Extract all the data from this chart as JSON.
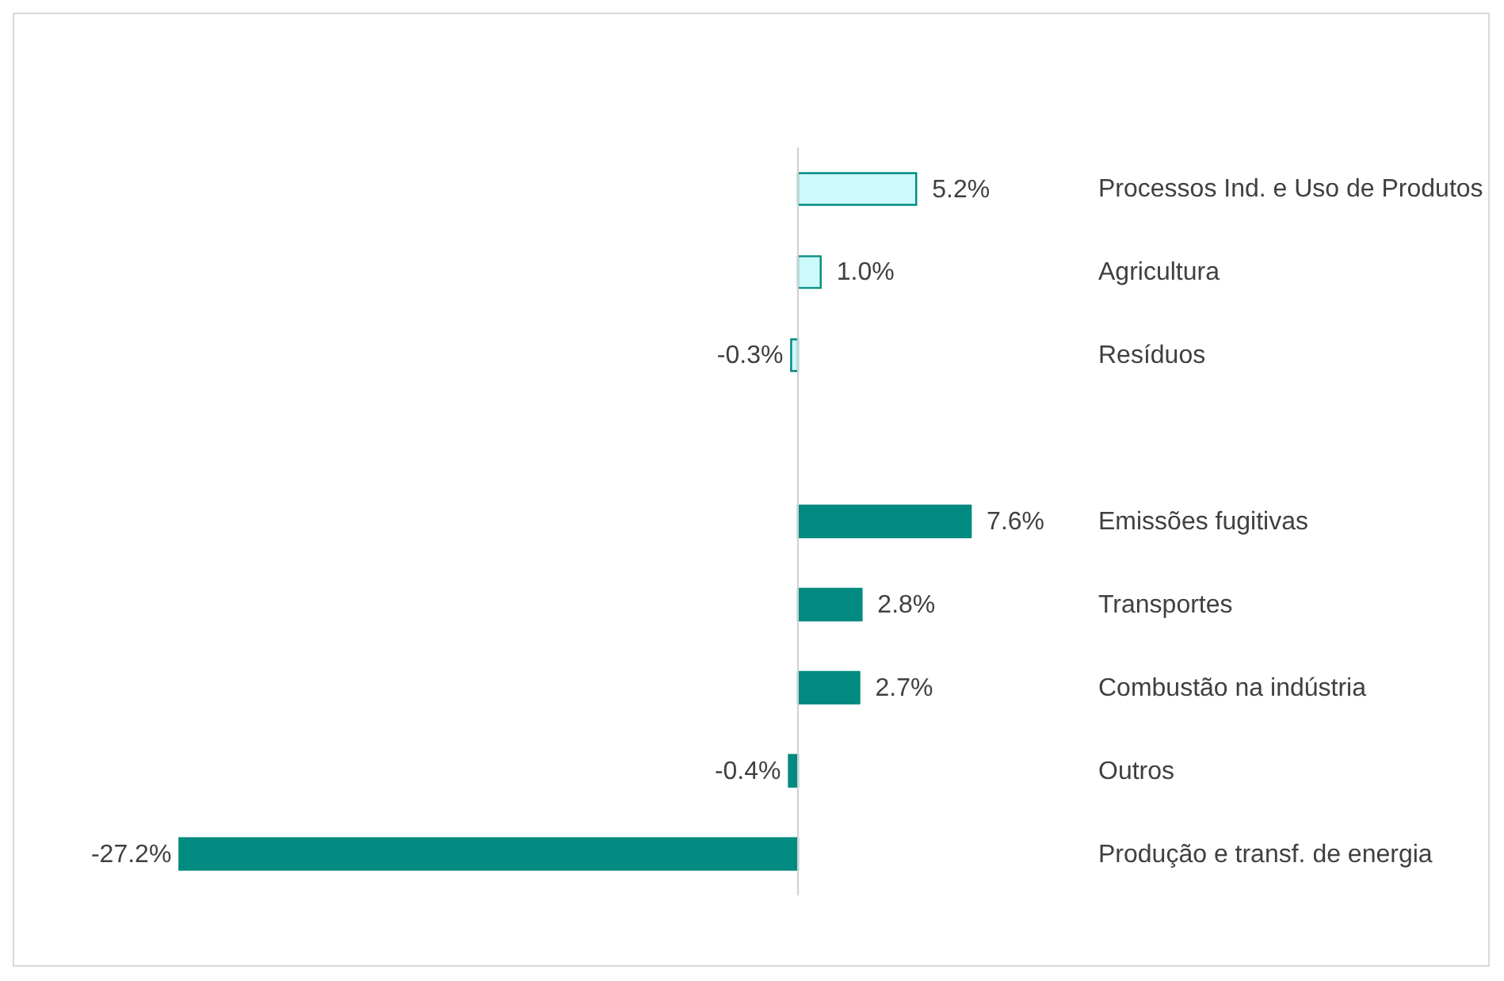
{
  "chart_data": {
    "type": "bar",
    "orientation": "horizontal",
    "categories": [
      "Processos Ind. e Uso de Produtos",
      "Agricultura",
      "Resíduos",
      null,
      "Emissões fugitivas",
      "Transportes",
      "Combustão na indústria",
      "Outros",
      "Produção e transf. de energia"
    ],
    "values": [
      5.2,
      1.0,
      -0.3,
      null,
      7.6,
      2.8,
      2.7,
      -0.4,
      -27.2
    ],
    "colors": [
      "#ccf9fb",
      "#ccf9fb",
      "#ccf9fb",
      null,
      "#008a80",
      "#008a80",
      "#008a80",
      "#008a80",
      "#008a80"
    ],
    "value_labels": [
      "5.2%",
      "1.0%",
      "-0.3%",
      null,
      "7.6%",
      "2.8%",
      "2.7%",
      "-0.4%",
      "-27.2%"
    ],
    "tick_labels": "y"
  }
}
